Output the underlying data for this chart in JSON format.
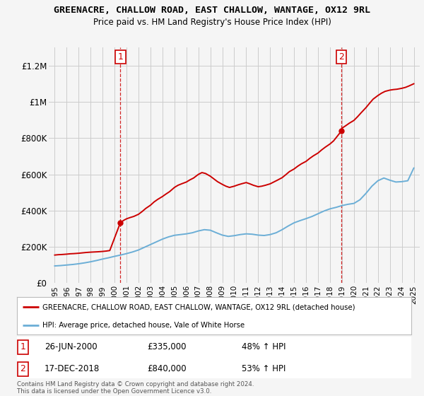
{
  "title": "GREENACRE, CHALLOW ROAD, EAST CHALLOW, WANTAGE, OX12 9RL",
  "subtitle": "Price paid vs. HM Land Registry's House Price Index (HPI)",
  "legend_line1": "GREENACRE, CHALLOW ROAD, EAST CHALLOW, WANTAGE, OX12 9RL (detached house)",
  "legend_line2": "HPI: Average price, detached house, Vale of White Horse",
  "footer": "Contains HM Land Registry data © Crown copyright and database right 2024.\nThis data is licensed under the Open Government Licence v3.0.",
  "red_color": "#cc0000",
  "blue_color": "#6baed6",
  "background_color": "#f5f5f5",
  "grid_color": "#cccccc",
  "ylim": [
    0,
    1300000
  ],
  "yticks": [
    0,
    200000,
    400000,
    600000,
    800000,
    1000000,
    1200000
  ],
  "ytick_labels": [
    "£0",
    "£200K",
    "£400K",
    "£600K",
    "£800K",
    "£1M",
    "£1.2M"
  ],
  "hpi_x": [
    1995,
    1995.5,
    1996,
    1996.5,
    1997,
    1997.5,
    1998,
    1998.5,
    1999,
    1999.5,
    2000,
    2000.5,
    2001,
    2001.5,
    2002,
    2002.5,
    2003,
    2003.5,
    2004,
    2004.5,
    2005,
    2005.5,
    2006,
    2006.5,
    2007,
    2007.5,
    2008,
    2008.5,
    2009,
    2009.5,
    2010,
    2010.5,
    2011,
    2011.5,
    2012,
    2012.5,
    2013,
    2013.5,
    2014,
    2014.5,
    2015,
    2015.5,
    2016,
    2016.5,
    2017,
    2017.5,
    2018,
    2018.5,
    2019,
    2019.5,
    2020,
    2020.5,
    2021,
    2021.5,
    2022,
    2022.5,
    2023,
    2023.5,
    2024,
    2024.5,
    2025
  ],
  "hpi_y": [
    95000,
    97000,
    100000,
    103000,
    107000,
    112000,
    118000,
    125000,
    133000,
    140000,
    148000,
    155000,
    163000,
    172000,
    183000,
    198000,
    213000,
    228000,
    243000,
    255000,
    264000,
    268000,
    272000,
    278000,
    288000,
    295000,
    292000,
    278000,
    265000,
    258000,
    262000,
    268000,
    272000,
    270000,
    265000,
    263000,
    268000,
    278000,
    295000,
    315000,
    333000,
    345000,
    356000,
    368000,
    383000,
    398000,
    410000,
    418000,
    428000,
    435000,
    440000,
    460000,
    495000,
    535000,
    565000,
    580000,
    568000,
    558000,
    560000,
    565000,
    635000
  ],
  "red_x": [
    1995,
    1995.3,
    1995.6,
    1996,
    1996.3,
    1996.6,
    1997,
    1997.3,
    1997.6,
    1998,
    1998.3,
    1998.6,
    1999,
    1999.3,
    1999.6,
    2000.49,
    2000.8,
    2001,
    2001.3,
    2001.6,
    2002,
    2002.3,
    2002.6,
    2003,
    2003.3,
    2003.6,
    2004,
    2004.3,
    2004.6,
    2005,
    2005.3,
    2005.6,
    2006,
    2006.3,
    2006.6,
    2007,
    2007.3,
    2007.6,
    2008,
    2008.3,
    2008.6,
    2009,
    2009.3,
    2009.6,
    2010,
    2010.3,
    2010.6,
    2011,
    2011.3,
    2011.6,
    2012,
    2012.3,
    2012.6,
    2013,
    2013.3,
    2013.6,
    2014,
    2014.3,
    2014.6,
    2015,
    2015.3,
    2015.6,
    2016,
    2016.3,
    2016.6,
    2017,
    2017.3,
    2017.6,
    2018,
    2018.3,
    2018.96,
    2019,
    2019.3,
    2019.6,
    2020,
    2020.3,
    2020.6,
    2021,
    2021.3,
    2021.6,
    2022,
    2022.3,
    2022.6,
    2023,
    2023.3,
    2023.6,
    2024,
    2024.3,
    2024.6,
    2025
  ],
  "red_y": [
    155000,
    157000,
    158000,
    160000,
    162000,
    163000,
    165000,
    167000,
    169000,
    171000,
    172000,
    173000,
    175000,
    177000,
    180000,
    335000,
    348000,
    355000,
    362000,
    368000,
    380000,
    395000,
    412000,
    430000,
    448000,
    462000,
    478000,
    492000,
    505000,
    528000,
    540000,
    548000,
    558000,
    570000,
    580000,
    600000,
    610000,
    605000,
    590000,
    575000,
    560000,
    545000,
    535000,
    528000,
    535000,
    542000,
    548000,
    555000,
    548000,
    540000,
    532000,
    535000,
    540000,
    548000,
    558000,
    568000,
    582000,
    598000,
    615000,
    630000,
    645000,
    658000,
    672000,
    688000,
    702000,
    718000,
    735000,
    750000,
    768000,
    785000,
    840000,
    855000,
    868000,
    882000,
    898000,
    918000,
    940000,
    968000,
    992000,
    1015000,
    1035000,
    1048000,
    1058000,
    1065000,
    1068000,
    1070000,
    1075000,
    1080000,
    1088000,
    1100000
  ],
  "sale1_x": 2000.49,
  "sale1_y": 335000,
  "sale2_x": 2018.96,
  "sale2_y": 840000,
  "ann1_date": "26-JUN-2000",
  "ann1_price": "£335,000",
  "ann1_hpi": "48% ↑ HPI",
  "ann2_date": "17-DEC-2018",
  "ann2_price": "£840,000",
  "ann2_hpi": "53% ↑ HPI",
  "xmin": 1994.5,
  "xmax": 2025.5,
  "xticks": [
    1995,
    1996,
    1997,
    1998,
    1999,
    2000,
    2001,
    2002,
    2003,
    2004,
    2005,
    2006,
    2007,
    2008,
    2009,
    2010,
    2011,
    2012,
    2013,
    2014,
    2015,
    2016,
    2017,
    2018,
    2019,
    2020,
    2021,
    2022,
    2023,
    2024,
    2025
  ]
}
